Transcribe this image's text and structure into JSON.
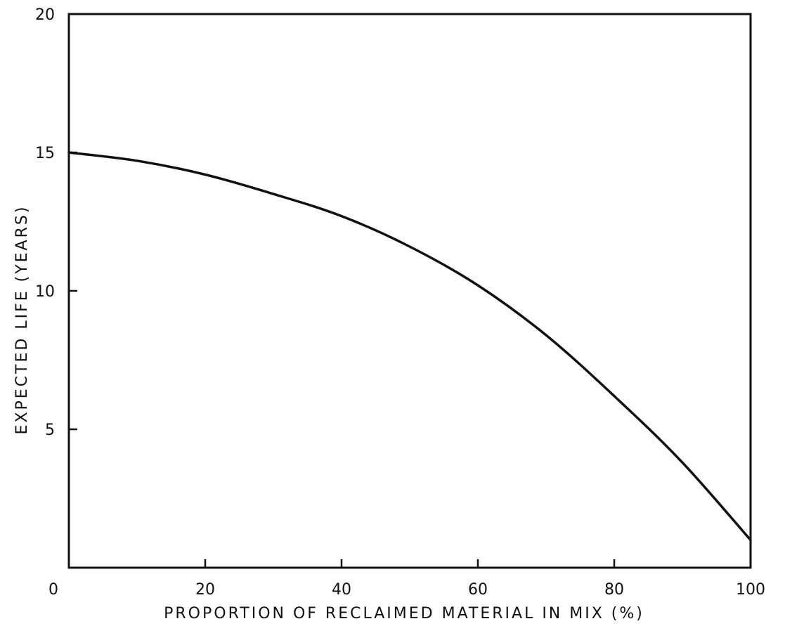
{
  "chart_data": {
    "type": "line",
    "title": "",
    "xlabel": "PROPORTION OF RECLAIMED MATERIAL IN MIX (%)",
    "ylabel": "EXPECTED LIFE (YEARS)",
    "xlim": [
      0,
      100
    ],
    "ylim": [
      0,
      20
    ],
    "x_ticks": [
      0,
      20,
      40,
      60,
      80,
      100
    ],
    "y_ticks": [
      5,
      10,
      15,
      20
    ],
    "x_tick_labels": [
      "0",
      "20",
      "40",
      "60",
      "80",
      "100"
    ],
    "y_tick_labels": [
      "5",
      "10",
      "15",
      "20"
    ],
    "grid": false,
    "legend": "none",
    "colors": {
      "line": "#111111",
      "frame": "#111111",
      "background": "#ffffff"
    },
    "series": [
      {
        "x": [
          0,
          10,
          20,
          30,
          40,
          50,
          60,
          70,
          80,
          90,
          100
        ],
        "y": [
          15.0,
          14.7,
          14.2,
          13.5,
          12.7,
          11.6,
          10.2,
          8.4,
          6.2,
          3.8,
          1.0
        ]
      }
    ]
  }
}
